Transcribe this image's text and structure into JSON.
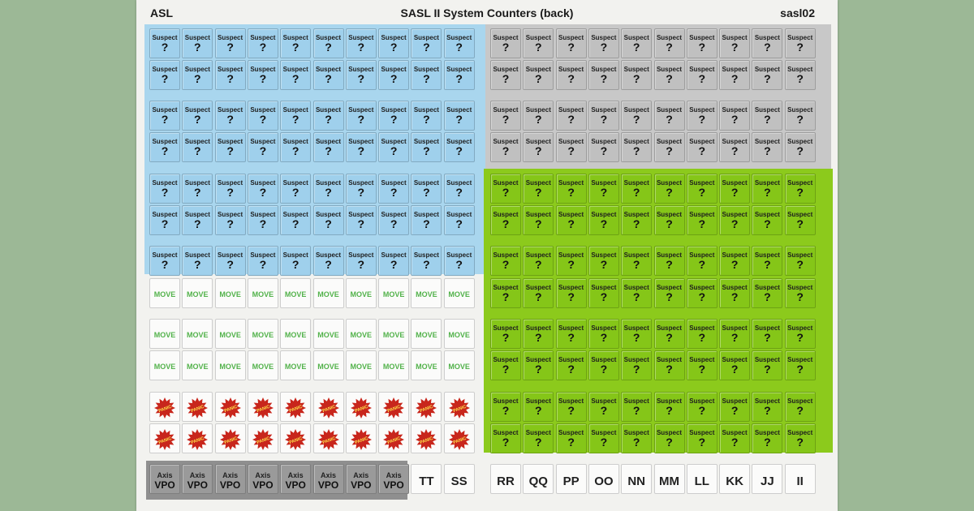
{
  "header": {
    "left": "ASL",
    "title": "SASL II System Counters (back)",
    "right": "sasl02"
  },
  "counters": {
    "suspect_label": "Suspect",
    "unknown_mark": "?",
    "move_label": "MOVE",
    "panic_label": "PANIC",
    "axis_vpo_top": "Axis",
    "axis_vpo_bottom": "VPO",
    "letter_codes": [
      "TT",
      "SS",
      "RR",
      "QQ",
      "PP",
      "OO",
      "NN",
      "MM",
      "LL",
      "KK",
      "JJ",
      "II"
    ]
  },
  "sheet_sections": {
    "left_suspect_rows": 7,
    "right_gray_suspect_rows": 4,
    "right_green_suspect_rows": 8,
    "move_rows": 3,
    "panic_rows": 2,
    "axis_vpo_count": 8
  },
  "colors": {
    "blue_section": "#9fd0ec",
    "gray_section": "#c0c0c0",
    "green_section": "#85c618",
    "move_text": "#52b24a",
    "panic_star": "#c8261c",
    "panic_text": "#ffe24a",
    "axis_vpo_bg": "#9a9a9a"
  }
}
